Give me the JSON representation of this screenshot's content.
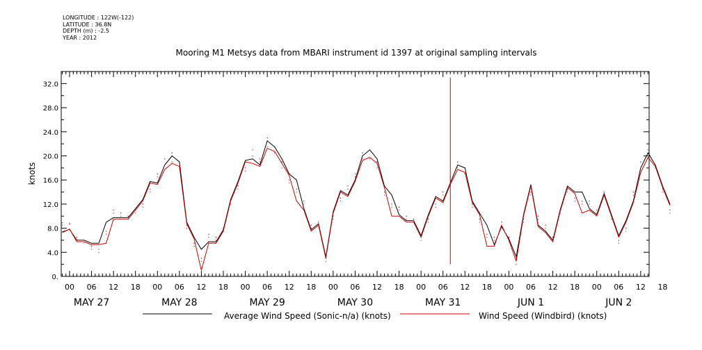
{
  "header": {
    "meta": [
      "LONGITUDE : 122W(-122)",
      "LATITUDE : 36.8N",
      "DEPTH (m) : -2.5",
      "YEAR : 2012"
    ]
  },
  "colors": {
    "sonic": "#000000",
    "windbird": "#cc0000",
    "axis": "#000000",
    "background": "#ffffff"
  },
  "chart_data": {
    "type": "line",
    "title": "Mooring M1 Metsys data from MBARI instrument id 1397 at original sampling intervals",
    "ylabel": "knots",
    "xlabel": "",
    "ylim": [
      0,
      34
    ],
    "yticks": [
      "0.",
      "4.0",
      "8.0",
      "12.0",
      "16.0",
      "20.0",
      "24.0",
      "28.0",
      "32.0"
    ],
    "x_unit": "hours since 2012-05-26 22:00",
    "xlim": [
      0,
      166
    ],
    "hour_ticks": [
      "00",
      "06",
      "12",
      "18",
      "00",
      "06",
      "12",
      "18",
      "00",
      "06",
      "12",
      "18",
      "00",
      "06",
      "12",
      "18",
      "00",
      "06",
      "12",
      "18",
      "00",
      "06",
      "12",
      "18",
      "00",
      "06",
      "12",
      "18"
    ],
    "date_labels": [
      "MAY 27",
      "MAY 28",
      "MAY 29",
      "MAY 30",
      "MAY 31",
      "JUN  1",
      "JUN  2"
    ],
    "grid": false,
    "legend_position": "bottom",
    "series": [
      {
        "name": "Average Wind Speed (Sonic-n/a) (knots)",
        "x": [
          0,
          2,
          4,
          6,
          8,
          10,
          12,
          14,
          16,
          18,
          20,
          22,
          24,
          26,
          28,
          30,
          32,
          34,
          36,
          38,
          40,
          42,
          44,
          46,
          48,
          50,
          52,
          54,
          56,
          58,
          60,
          62,
          64,
          66,
          68,
          70,
          72,
          74,
          76,
          78,
          80,
          82,
          84,
          86,
          88,
          90,
          92,
          94,
          96,
          98,
          100,
          102,
          104,
          106,
          108,
          110,
          112,
          114,
          116,
          118,
          120,
          122,
          124,
          126,
          128,
          130,
          132,
          134,
          136,
          138,
          140,
          142,
          144,
          146,
          148,
          150,
          152,
          154,
          156,
          158,
          160,
          162,
          164,
          166
        ],
        "y": [
          8.9,
          8.8,
          6.5,
          6.0,
          5.0,
          4.5,
          7.5,
          11.0,
          10.5,
          10.0,
          11.0,
          12.0,
          14.5,
          17.0,
          19.5,
          20.5,
          19.0,
          8.5,
          5.5,
          3.0,
          7.0,
          6.5,
          8.0,
          12.5,
          15.0,
          18.0,
          21.0,
          19.5,
          23.0,
          21.5,
          19.0,
          16.0,
          14.5,
          12.5,
          8.5,
          9.0,
          3.0,
          10.0,
          13.0,
          15.0,
          17.0,
          20.5,
          21.0,
          19.0,
          14.0,
          12.0,
          11.5,
          10.0,
          9.5,
          6.5,
          9.5,
          12.0,
          14.0,
          16.5,
          19.0,
          18.0,
          12.0,
          9.5,
          7.0,
          6.5,
          9.0,
          6.5,
          3.0,
          9.5,
          14.0,
          10.0,
          8.5,
          6.5,
          11.0,
          14.5,
          13.0,
          12.5,
          12.5,
          11.0,
          14.0,
          10.0,
          6.0,
          8.0,
          14.0,
          19.0,
          21.0,
          18.5,
          14.5,
          11.0
        ]
      },
      {
        "name": "Wind Speed (Windbird) (knots)",
        "x": [
          0,
          2,
          4,
          6,
          8,
          10,
          12,
          14,
          16,
          18,
          20,
          22,
          24,
          26,
          28,
          30,
          32,
          34,
          36,
          38,
          40,
          42,
          44,
          46,
          48,
          50,
          52,
          54,
          56,
          58,
          60,
          62,
          64,
          66,
          68,
          70,
          72,
          74,
          76,
          78,
          80,
          82,
          84,
          86,
          88,
          90,
          92,
          94,
          96,
          98,
          100,
          102,
          104,
          106,
          108,
          110,
          112,
          114,
          116,
          118,
          120,
          122,
          124,
          126,
          128,
          130,
          132,
          134,
          136,
          138,
          140,
          142,
          144,
          146,
          148,
          150,
          152,
          154,
          156,
          158,
          160,
          162,
          164,
          166
        ],
        "y": [
          8.5,
          8.6,
          6.0,
          5.5,
          4.5,
          4.0,
          7.0,
          10.5,
          10.0,
          9.5,
          10.5,
          11.5,
          14.0,
          16.5,
          18.5,
          19.0,
          18.0,
          8.0,
          5.0,
          2.5,
          6.5,
          6.0,
          7.5,
          12.0,
          14.5,
          17.5,
          20.0,
          19.0,
          21.5,
          20.5,
          18.0,
          15.5,
          14.0,
          12.0,
          8.0,
          8.5,
          2.5,
          9.5,
          12.5,
          14.5,
          16.5,
          19.5,
          19.5,
          18.0,
          13.5,
          11.5,
          11.0,
          9.5,
          9.0,
          6.0,
          9.0,
          11.5,
          13.5,
          16.0,
          18.0,
          17.0,
          11.5,
          9.0,
          6.5,
          6.0,
          9.0,
          6.0,
          2.0,
          9.0,
          13.5,
          9.5,
          8.0,
          6.0,
          10.5,
          14.0,
          12.5,
          12.0,
          12.0,
          10.5,
          13.5,
          9.5,
          5.5,
          7.5,
          13.5,
          18.0,
          20.0,
          18.0,
          14.0,
          10.5
        ],
        "annotation": {
          "spike_x": 106,
          "spike_y": 33.0
        }
      }
    ]
  }
}
